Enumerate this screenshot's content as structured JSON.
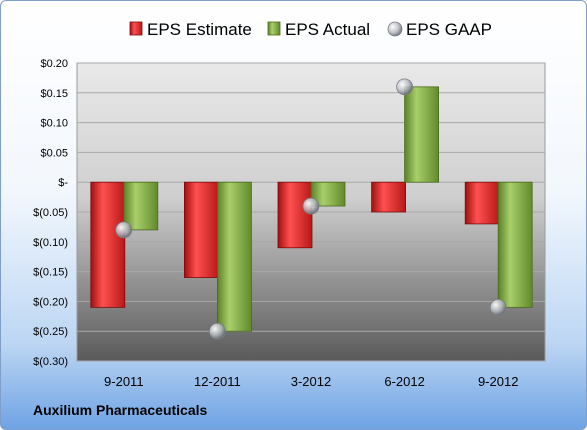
{
  "colors": {
    "estimate": "#e02a2a",
    "actual": "#7ea63c",
    "gaap": "#b8bcc4",
    "plot_top": "#e9e9e9",
    "plot_bottom": "#5a5a5a"
  },
  "company": "Auxilium Pharmaceuticals",
  "chart_data": {
    "type": "bar",
    "categories": [
      "9-2011",
      "12-2011",
      "3-2012",
      "6-2012",
      "9-2012"
    ],
    "series": [
      {
        "name": "EPS Estimate",
        "type": "bar",
        "values": [
          -0.21,
          -0.16,
          -0.11,
          -0.05,
          -0.07
        ]
      },
      {
        "name": "EPS Actual",
        "type": "bar",
        "values": [
          -0.08,
          -0.25,
          -0.04,
          0.16,
          -0.21
        ]
      },
      {
        "name": "EPS GAAP",
        "type": "scatter",
        "values": [
          -0.08,
          -0.25,
          -0.04,
          0.16,
          -0.21
        ]
      }
    ],
    "ylim": [
      -0.3,
      0.2
    ],
    "yticks": [
      0.2,
      0.15,
      0.1,
      0.05,
      0,
      -0.05,
      -0.1,
      -0.15,
      -0.2,
      -0.25,
      -0.3
    ],
    "ytick_labels": [
      "$0.20",
      "$0.15",
      "$0.10",
      "$0.05",
      "$-",
      "$(0.05)",
      "$(0.10)",
      "$(0.15)",
      "$(0.20)",
      "$(0.25)",
      "$(0.30)"
    ],
    "grid": true,
    "legend": "top"
  }
}
